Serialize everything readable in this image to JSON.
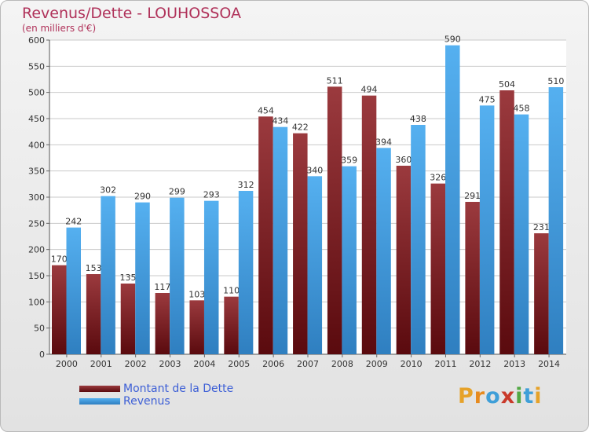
{
  "chart_data": {
    "type": "bar",
    "title": "Revenus/Dette - LOUHOSSOA",
    "subtitle": "(en milliers d'€)",
    "categories": [
      "2000",
      "2001",
      "2002",
      "2003",
      "2004",
      "2005",
      "2006",
      "2007",
      "2008",
      "2009",
      "2010",
      "2011",
      "2012",
      "2013",
      "2014"
    ],
    "series": [
      {
        "name": "Montant de la Dette",
        "color": "#8c2a2e",
        "values": [
          170,
          153,
          135,
          117,
          103,
          110,
          454,
          422,
          511,
          494,
          360,
          326,
          291,
          504,
          231
        ]
      },
      {
        "name": "Revenus",
        "color": "#4aa3e6",
        "values": [
          242,
          302,
          290,
          299,
          293,
          312,
          434,
          340,
          359,
          394,
          438,
          590,
          475,
          458,
          510
        ]
      }
    ],
    "ylim": [
      0,
      600
    ],
    "yticks": [
      0,
      50,
      100,
      150,
      200,
      250,
      300,
      350,
      400,
      450,
      500,
      550,
      600
    ],
    "grid": true,
    "legend_position": "bottom-left"
  },
  "logo": {
    "letters": [
      "P",
      "r",
      "o",
      "x",
      "i",
      "t",
      "i"
    ],
    "colors": [
      "#e6a229",
      "#e68a1f",
      "#3f9fd8",
      "#c93a2a",
      "#52a843",
      "#3f9fd8",
      "#e6a229"
    ]
  }
}
